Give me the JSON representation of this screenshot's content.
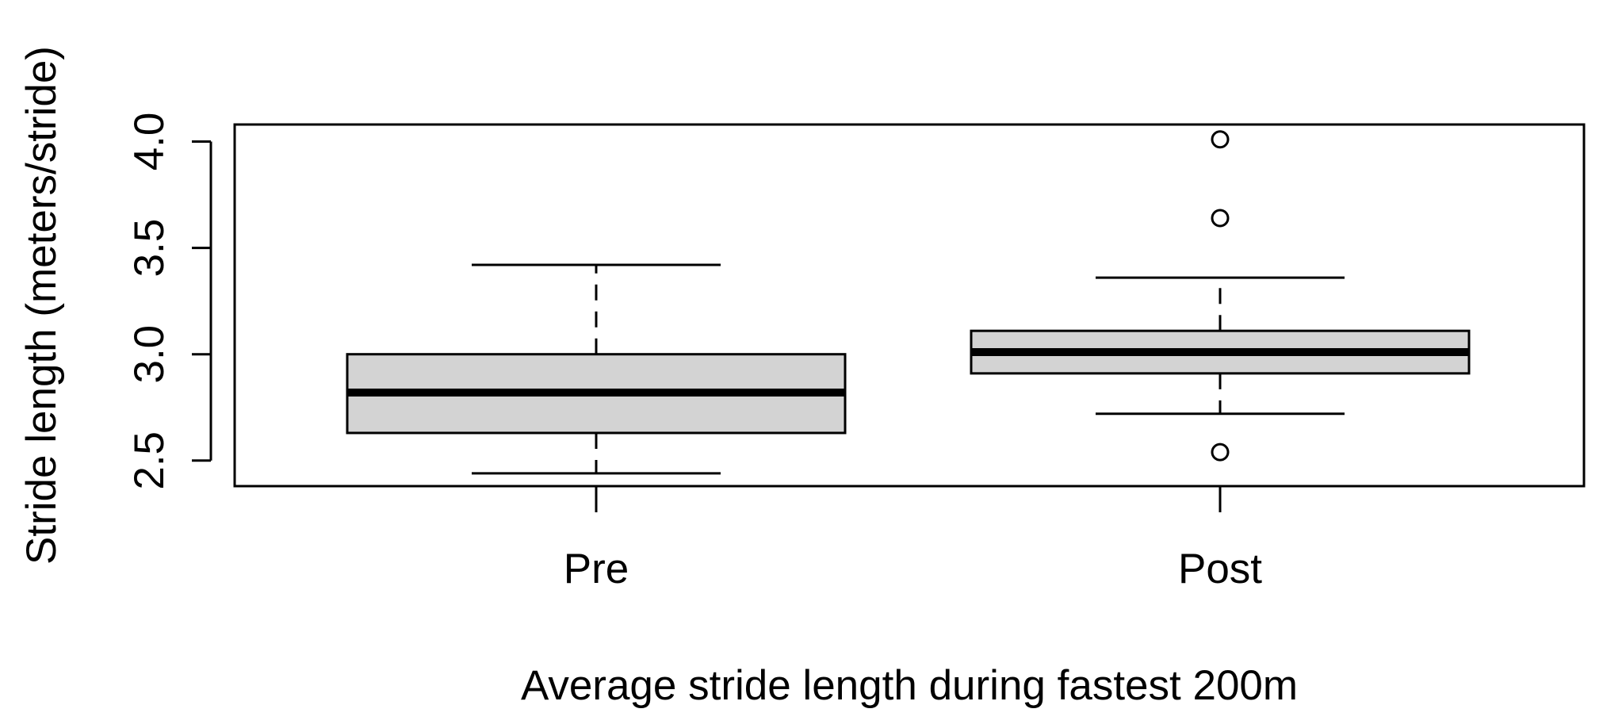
{
  "chart_data": {
    "type": "boxplot",
    "title": "",
    "xlabel": "Average stride length during fastest 200m",
    "ylabel": "Stride length (meters/stride)",
    "categories": [
      "Pre",
      "Post"
    ],
    "y_ticks": [
      2.5,
      3.0,
      3.5,
      4.0
    ],
    "y_tick_labels": [
      "2.5",
      "3.0",
      "3.5",
      "4.0"
    ],
    "ylim": [
      2.38,
      4.08
    ],
    "grid": false,
    "legend": "none",
    "box_fill": "#d3d3d3",
    "stroke_color": "#000000",
    "boxes": [
      {
        "category": "Pre",
        "min": 2.44,
        "q1": 2.63,
        "median": 2.82,
        "q3": 3.0,
        "max": 3.42,
        "outliers": []
      },
      {
        "category": "Post",
        "min": 2.72,
        "q1": 2.91,
        "median": 3.01,
        "q3": 3.11,
        "max": 3.36,
        "outliers": [
          2.54,
          3.64,
          4.01
        ]
      }
    ]
  }
}
